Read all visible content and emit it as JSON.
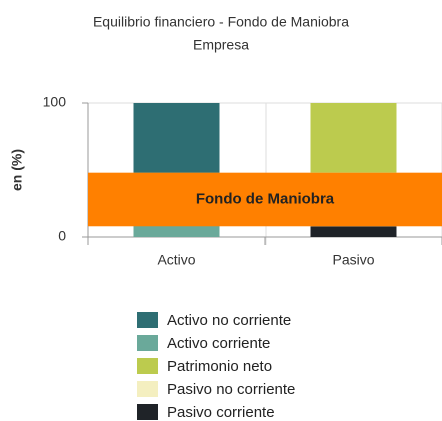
{
  "chart_data": {
    "type": "stacked_bar",
    "title": "Equilibrio financiero - Fondo de Maniobra",
    "subtitle": "Empresa",
    "y_label": "en (%)",
    "categories": [
      "Activo",
      "Pasivo"
    ],
    "series": [
      {
        "name": "Activo no corriente",
        "color": "#2e6e73",
        "values": [
          52,
          null
        ]
      },
      {
        "name": "Activo corriente",
        "color": "#6aa99a",
        "values": [
          48,
          null
        ]
      },
      {
        "name": "Patrimonio neto",
        "color": "#bccb4e",
        "values": [
          null,
          52
        ]
      },
      {
        "name": "Pasivo no corriente",
        "color": "#f4efc0",
        "values": [
          null,
          40
        ]
      },
      {
        "name": "Pasivo corriente",
        "color": "#1f2328",
        "values": [
          null,
          8
        ]
      }
    ],
    "annotation": {
      "text": "Fondo de Maniobra",
      "color": "#ff8000"
    },
    "ylim": [
      0,
      100
    ],
    "yticks": [
      0,
      100
    ],
    "grid": true
  }
}
